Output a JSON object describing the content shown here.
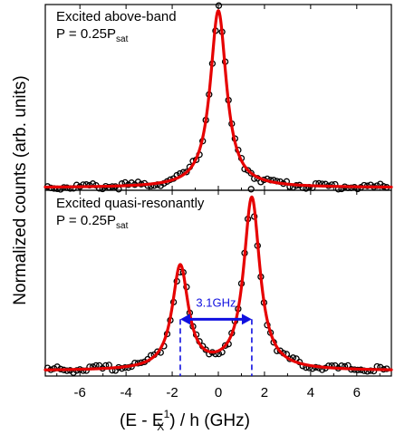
{
  "chart_data": [
    {
      "type": "scatter",
      "panel_text": {
        "line1": "Excited above-band",
        "line2_main": "P = 0.25P",
        "line2_sub": "sat"
      },
      "xlim": [
        -7.5,
        7.5
      ],
      "ylim": [
        0,
        1.05
      ],
      "series": [
        {
          "marker": "circle",
          "fit": {
            "type": "lorentzian",
            "x0": 0.0,
            "width": 0.85,
            "baseline": 0.015,
            "amplitude": 1.0,
            "color": "#e60000"
          }
        }
      ]
    },
    {
      "type": "scatter",
      "panel_text": {
        "line1": "Excited quasi-resonantly",
        "line2_main": "P = 0.25P",
        "line2_sub": "sat"
      },
      "xlim": [
        -7.5,
        7.5
      ],
      "ylim": [
        0,
        1.08
      ],
      "series": [
        {
          "marker": "circle",
          "fit": {
            "type": "double-lorentzian",
            "peaks": [
              {
                "x0": -1.65,
                "width": 0.85,
                "amplitude": 0.6
              },
              {
                "x0": 1.45,
                "width": 0.85,
                "amplitude": 1.0
              }
            ],
            "baseline": 0.03,
            "color": "#e60000"
          }
        }
      ],
      "annotation": {
        "label": "3.1GHz",
        "x_from": -1.65,
        "x_to": 1.45,
        "color": "#1010e0"
      }
    }
  ],
  "axes": {
    "x_ticks": [
      "-6",
      "-4",
      "-2",
      "0",
      "2",
      "4",
      "6"
    ],
    "x_tick_values": [
      -6,
      -4,
      -2,
      0,
      2,
      4,
      6
    ],
    "xlabel_parts": {
      "pre": "(E - E",
      "sup": "1-",
      "sub": "X",
      "post": ") / h (GHz)"
    },
    "ylabel": "Normalized counts (arb. units)"
  }
}
